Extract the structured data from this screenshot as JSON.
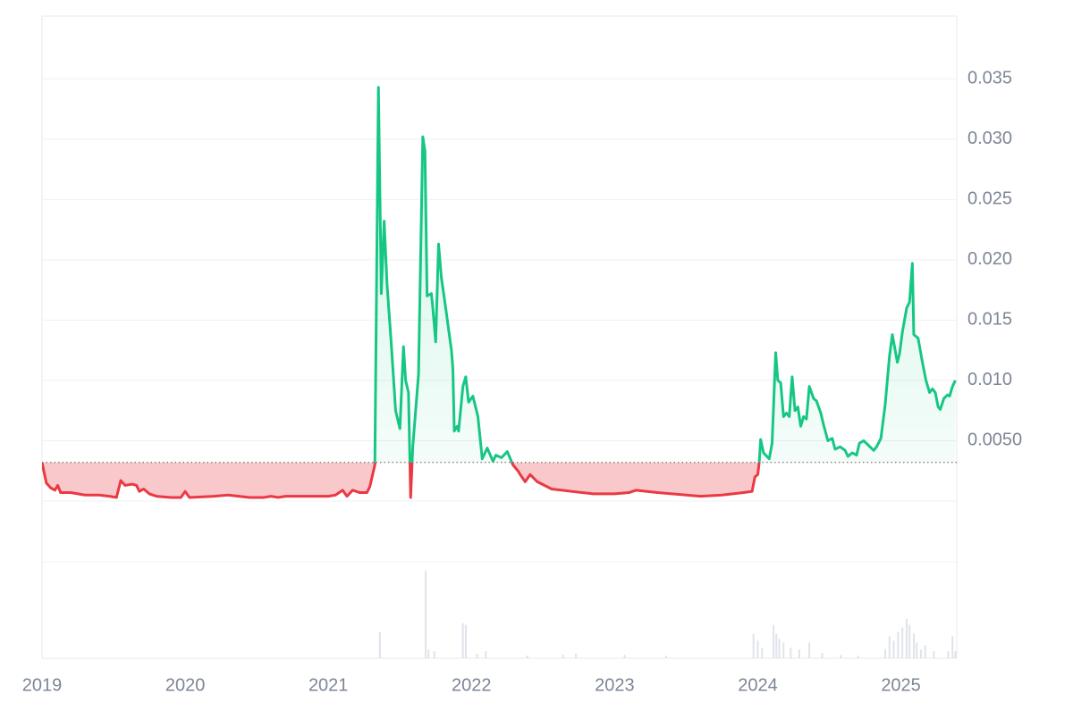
{
  "chart_data": {
    "type": "line",
    "x": [
      2019.0,
      2019.03,
      2019.06,
      2019.09,
      2019.11,
      2019.13,
      2019.2,
      2019.3,
      2019.4,
      2019.47,
      2019.52,
      2019.55,
      2019.58,
      2019.63,
      2019.66,
      2019.68,
      2019.71,
      2019.75,
      2019.8,
      2019.9,
      2019.97,
      2020.0,
      2020.03,
      2020.2,
      2020.3,
      2020.45,
      2020.55,
      2020.6,
      2020.65,
      2020.7,
      2020.9,
      2021.0,
      2021.05,
      2021.1,
      2021.13,
      2021.17,
      2021.22,
      2021.27,
      2021.29,
      2021.325,
      2021.35,
      2021.37,
      2021.39,
      2021.41,
      2021.44,
      2021.47,
      2021.5,
      2021.525,
      2021.54,
      2021.56,
      2021.575,
      2021.59,
      2021.63,
      2021.66,
      2021.675,
      2021.69,
      2021.72,
      2021.73,
      2021.75,
      2021.77,
      2021.79,
      2021.82,
      2021.86,
      2021.87,
      2021.88,
      2021.9,
      2021.91,
      2021.94,
      2021.96,
      2021.98,
      2022.01,
      2022.045,
      2022.075,
      2022.11,
      2022.15,
      2022.17,
      2022.21,
      2022.25,
      2022.29,
      2022.325,
      2022.34,
      2022.375,
      2022.41,
      2022.46,
      2022.56,
      2022.7,
      2022.85,
      2023.0,
      2023.1,
      2023.15,
      2023.3,
      2023.5,
      2023.6,
      2023.75,
      2023.9,
      2023.96,
      2023.98,
      2024.0,
      2024.01,
      2024.02,
      2024.04,
      2024.08,
      2024.1,
      2024.125,
      2024.14,
      2024.16,
      2024.18,
      2024.2,
      2024.22,
      2024.24,
      2024.26,
      2024.28,
      2024.3,
      2024.32,
      2024.34,
      2024.36,
      2024.39,
      2024.41,
      2024.44,
      2024.46,
      2024.49,
      2024.52,
      2024.54,
      2024.575,
      2024.61,
      2024.63,
      2024.66,
      2024.69,
      2024.71,
      2024.74,
      2024.775,
      2024.81,
      2024.83,
      2024.86,
      2024.89,
      2024.92,
      2024.94,
      2024.975,
      2024.99,
      2025.01,
      2025.04,
      2025.06,
      2025.08,
      2025.09,
      2025.12,
      2025.15,
      2025.175,
      2025.2,
      2025.22,
      2025.24,
      2025.26,
      2025.275,
      2025.3,
      2025.325,
      2025.34,
      2025.36,
      2025.38
    ],
    "values": [
      0.0032,
      0.0015,
      0.0011,
      0.0009,
      0.0013,
      0.0007,
      0.0007,
      0.0005,
      0.0005,
      0.0004,
      0.0003,
      0.0017,
      0.0013,
      0.0014,
      0.0013,
      0.0008,
      0.001,
      0.0006,
      0.0004,
      0.0003,
      0.0003,
      0.0008,
      0.0003,
      0.0004,
      0.0005,
      0.0003,
      0.0003,
      0.0004,
      0.0003,
      0.0004,
      0.0004,
      0.0004,
      0.0005,
      0.0009,
      0.0004,
      0.0009,
      0.0007,
      0.0007,
      0.0012,
      0.003,
      0.0343,
      0.0172,
      0.0232,
      0.018,
      0.013,
      0.0075,
      0.006,
      0.0128,
      0.01,
      0.009,
      0.0003,
      0.0045,
      0.0105,
      0.0302,
      0.029,
      0.017,
      0.0172,
      0.016,
      0.0132,
      0.0213,
      0.0185,
      0.016,
      0.0125,
      0.011,
      0.0058,
      0.0062,
      0.0058,
      0.0095,
      0.0103,
      0.0082,
      0.0087,
      0.007,
      0.0035,
      0.0044,
      0.0033,
      0.0038,
      0.0036,
      0.0041,
      0.003,
      0.0025,
      0.0022,
      0.0016,
      0.0022,
      0.0016,
      0.001,
      0.0008,
      0.0006,
      0.0006,
      0.0007,
      0.0009,
      0.0007,
      0.0005,
      0.0004,
      0.0005,
      0.0007,
      0.0008,
      0.002,
      0.0022,
      0.0032,
      0.0051,
      0.004,
      0.0035,
      0.0048,
      0.0123,
      0.01,
      0.0098,
      0.007,
      0.0073,
      0.007,
      0.0103,
      0.0075,
      0.0078,
      0.0062,
      0.007,
      0.0068,
      0.0095,
      0.0085,
      0.0083,
      0.0073,
      0.0063,
      0.005,
      0.0052,
      0.0043,
      0.0045,
      0.0042,
      0.0037,
      0.004,
      0.0038,
      0.0048,
      0.005,
      0.0046,
      0.0042,
      0.0045,
      0.0052,
      0.008,
      0.012,
      0.0138,
      0.0115,
      0.0122,
      0.014,
      0.016,
      0.0165,
      0.0197,
      0.0138,
      0.0135,
      0.0115,
      0.01,
      0.009,
      0.0093,
      0.009,
      0.0078,
      0.0076,
      0.0085,
      0.0088,
      0.0087,
      0.0095,
      0.01
    ],
    "up_color": "#16c784",
    "down_color": "#ea3943",
    "xlim": [
      2019.0,
      2025.39
    ],
    "xticks": [
      2019,
      2020,
      2021,
      2022,
      2023,
      2024,
      2025
    ],
    "ylim": [
      0,
      0.0402
    ],
    "yticks": [
      {
        "value": 0.005,
        "label": "0.0050"
      },
      {
        "value": 0.01,
        "label": "0.010"
      },
      0.015,
      {
        "value": 0.02,
        "label": "0.020"
      },
      0.025,
      {
        "value": 0.03,
        "label": "0.030"
      },
      0.035
    ],
    "grid": true,
    "volume": {
      "color": "#dfe3ea",
      "ylim": [
        0,
        110
      ],
      "x": [
        2021.36,
        2021.68,
        2021.7,
        2021.74,
        2021.94,
        2021.96,
        2022.04,
        2022.1,
        2022.39,
        2022.64,
        2022.73,
        2023.07,
        2023.36,
        2023.97,
        2024.0,
        2024.03,
        2024.11,
        2024.13,
        2024.15,
        2024.18,
        2024.23,
        2024.29,
        2024.36,
        2024.45,
        2024.58,
        2024.7,
        2024.89,
        2024.92,
        2024.95,
        2024.98,
        2025.01,
        2025.04,
        2025.06,
        2025.09,
        2025.11,
        2025.14,
        2025.17,
        2025.23,
        2025.33,
        2025.36,
        2025.38
      ],
      "values": [
        30,
        100,
        10,
        8,
        40,
        38,
        5,
        8,
        3,
        4,
        5,
        4,
        3,
        28,
        20,
        12,
        38,
        28,
        22,
        18,
        12,
        10,
        18,
        6,
        4,
        3,
        10,
        25,
        20,
        30,
        35,
        45,
        38,
        28,
        18,
        10,
        15,
        8,
        8,
        25,
        8
      ]
    }
  }
}
